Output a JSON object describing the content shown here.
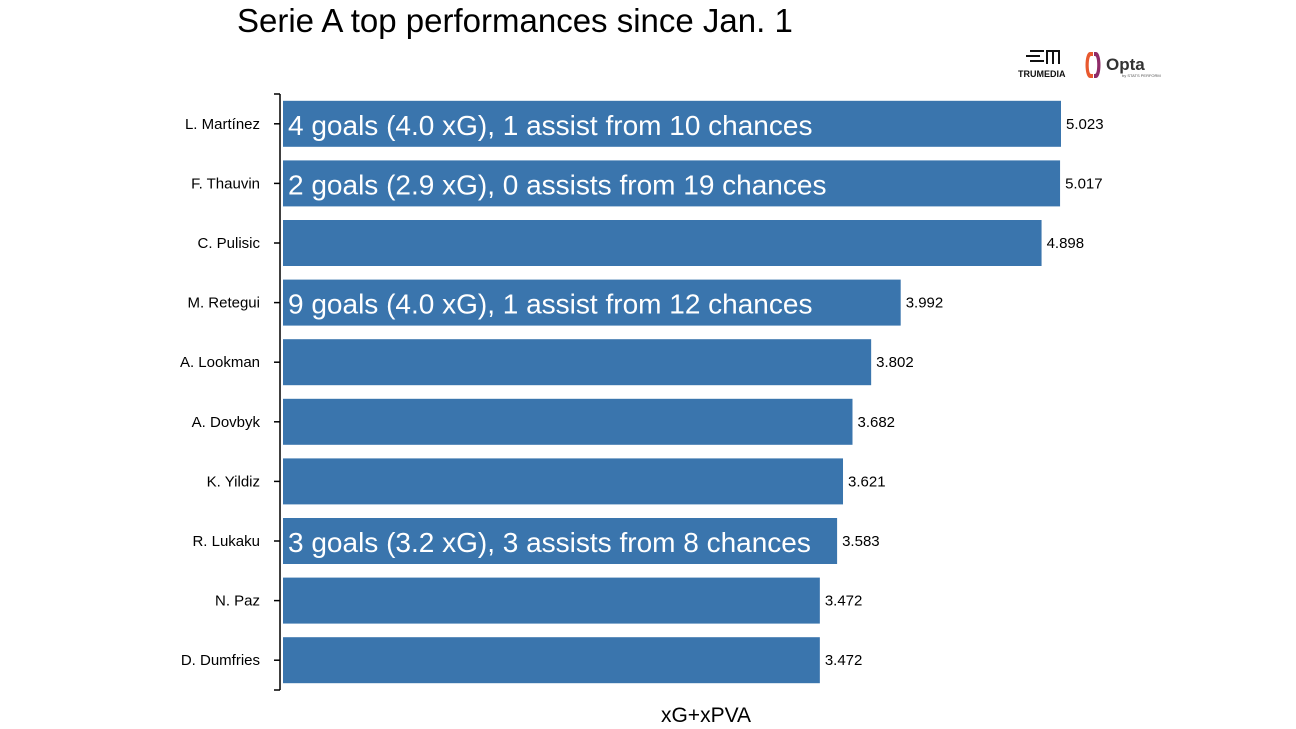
{
  "page": {
    "title": "Serie A top performances since Jan. 1"
  },
  "logos": {
    "trumedia_text": "TRUMEDIA",
    "opta_text": "Opta",
    "opta_subtext": "by STATS PERFORM"
  },
  "chart_data": {
    "type": "bar",
    "orientation": "horizontal",
    "title": "Serie A top performances since Jan. 1",
    "xlabel": "xG+xPVA",
    "ylabel": "",
    "xlim": [
      0,
      5.3
    ],
    "grid": false,
    "bar_color": "#3a75ad",
    "categories": [
      "L. Martínez",
      "F. Thauvin",
      "C. Pulisic",
      "M. Retegui",
      "A. Lookman",
      "A. Dovbyk",
      "K. Yildiz",
      "R. Lukaku",
      "N. Paz",
      "D. Dumfries"
    ],
    "values": [
      5.023,
      5.017,
      4.898,
      3.992,
      3.802,
      3.682,
      3.621,
      3.583,
      3.472,
      3.472
    ],
    "value_labels": [
      "5.023",
      "5.017",
      "4.898",
      "3.992",
      "3.802",
      "3.682",
      "3.621",
      "3.583",
      "3.472",
      "3.472"
    ],
    "annotations": [
      "4 goals (4.0 xG), 1 assist from 10 chances",
      "2 goals (2.9 xG), 0 assists from 19 chances",
      "",
      "9 goals (4.0 xG), 1 assist from 12 chances",
      "",
      "",
      "",
      "3 goals (3.2 xG), 3 assists from 8 chances",
      "",
      ""
    ]
  }
}
